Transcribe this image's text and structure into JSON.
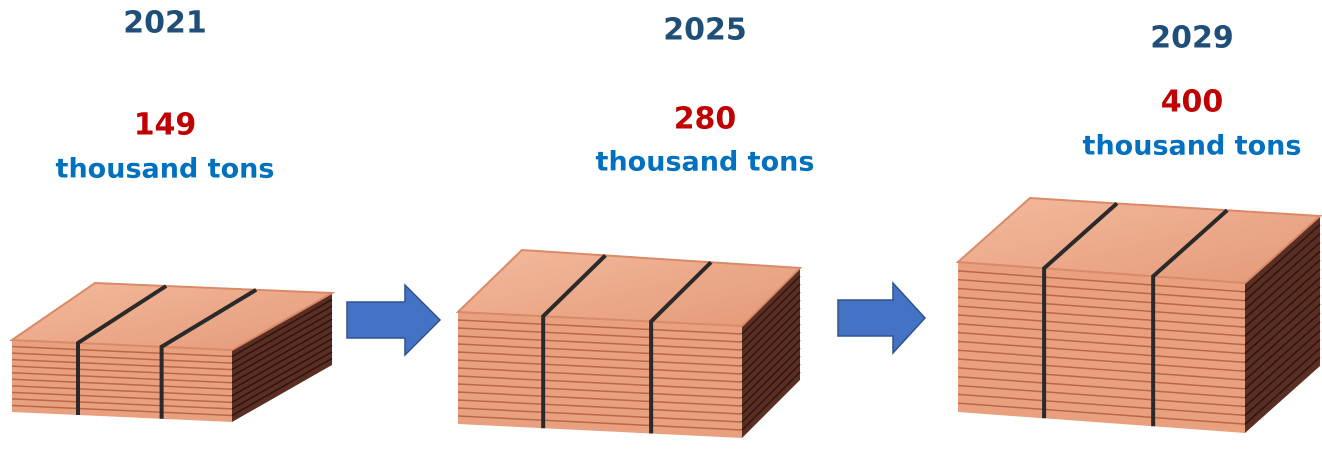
{
  "items": [
    {
      "year": "2021",
      "value": "149",
      "unit": "thousand tons"
    },
    {
      "year": "2025",
      "value": "280",
      "unit": "thousand tons"
    },
    {
      "year": "2029",
      "value": "400",
      "unit": "thousand tons"
    }
  ]
}
